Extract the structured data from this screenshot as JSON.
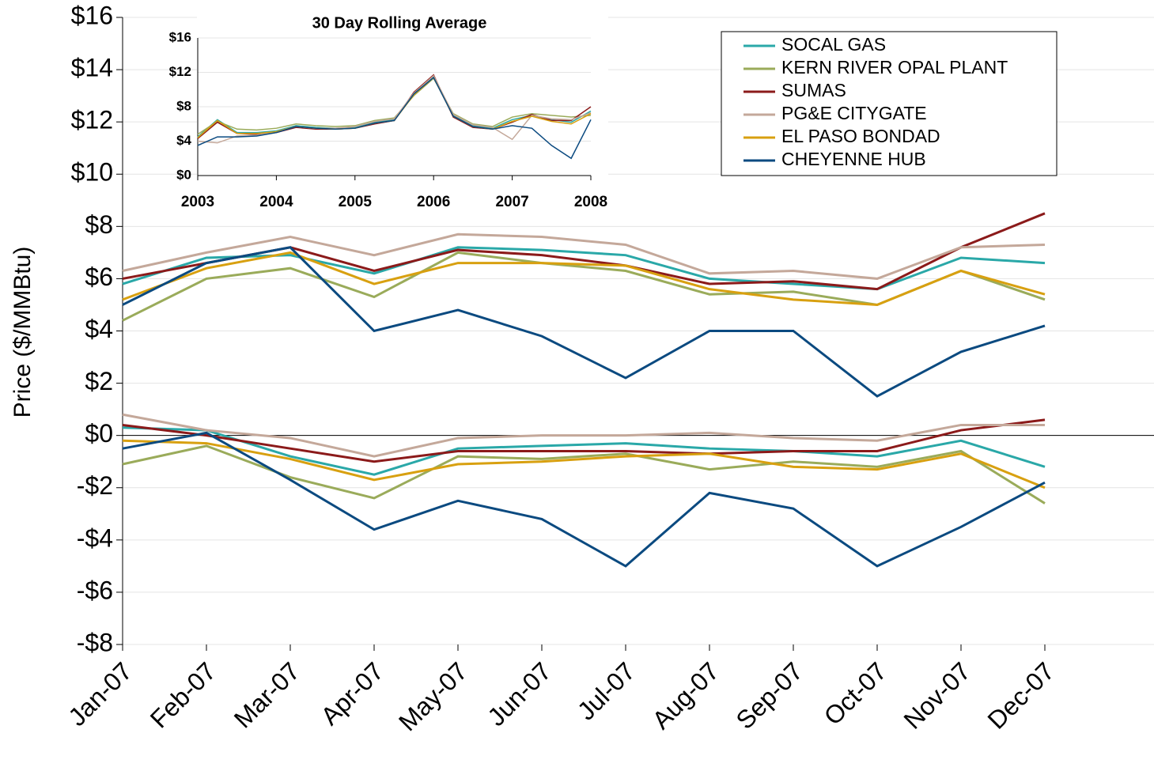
{
  "chart_data": [
    {
      "type": "line",
      "y_label": "Price ($/MMBtu)",
      "categories": [
        "Jan-07",
        "Feb-07",
        "Mar-07",
        "Apr-07",
        "May-07",
        "Jun-07",
        "Jul-07",
        "Aug-07",
        "Sep-07",
        "Oct-07",
        "Nov-07",
        "Dec-07"
      ],
      "ylim": [
        -8,
        16
      ],
      "yticks": [
        {
          "value": -8,
          "label": "-$8"
        },
        {
          "value": -6,
          "label": "-$6"
        },
        {
          "value": -4,
          "label": "-$4"
        },
        {
          "value": -2,
          "label": "-$2"
        },
        {
          "value": 0,
          "label": "$0"
        },
        {
          "value": 2,
          "label": "$2"
        },
        {
          "value": 4,
          "label": "$4"
        },
        {
          "value": 6,
          "label": "$6"
        },
        {
          "value": 8,
          "label": "$8"
        },
        {
          "value": 10,
          "label": "$10"
        },
        {
          "value": 12,
          "label": "$12"
        },
        {
          "value": 14,
          "label": "$14"
        },
        {
          "value": 16,
          "label": "$16"
        }
      ],
      "grid": true,
      "legend": "upper right",
      "series": [
        {
          "name": "SOCAL GAS",
          "color": "#2aa8a8",
          "values": [
            5.8,
            6.8,
            6.9,
            6.2,
            7.2,
            7.1,
            6.9,
            6.0,
            5.8,
            5.6,
            6.8,
            6.6
          ],
          "differential": [
            0.3,
            0.2,
            -0.8,
            -1.5,
            -0.5,
            -0.4,
            -0.3,
            -0.5,
            -0.6,
            -0.8,
            -0.2,
            -1.2
          ]
        },
        {
          "name": "KERN RIVER OPAL PLANT",
          "color": "#9aab5a",
          "values": [
            4.4,
            6.0,
            6.4,
            5.3,
            7.0,
            6.6,
            6.3,
            5.4,
            5.5,
            5.0,
            6.3,
            5.2
          ],
          "differential": [
            -1.1,
            -0.4,
            -1.6,
            -2.4,
            -0.8,
            -0.9,
            -0.7,
            -1.3,
            -1.0,
            -1.2,
            -0.6,
            -2.6
          ]
        },
        {
          "name": "SUMAS",
          "color": "#8b1a1a",
          "values": [
            6.0,
            6.6,
            7.2,
            6.3,
            7.1,
            6.9,
            6.5,
            5.8,
            5.9,
            5.6,
            7.2,
            8.5
          ],
          "differential": [
            0.4,
            0.0,
            -0.5,
            -1.0,
            -0.6,
            -0.6,
            -0.6,
            -0.7,
            -0.6,
            -0.6,
            0.2,
            0.6
          ]
        },
        {
          "name": "PG&E CITYGATE",
          "color": "#c4a89a",
          "values": [
            6.3,
            7.0,
            7.6,
            6.9,
            7.7,
            7.6,
            7.3,
            6.2,
            6.3,
            6.0,
            7.2,
            7.3
          ],
          "differential": [
            0.8,
            0.2,
            -0.1,
            -0.8,
            -0.1,
            0.0,
            0.0,
            0.1,
            -0.1,
            -0.2,
            0.4,
            0.4
          ]
        },
        {
          "name": "EL PASO BONDAD",
          "color": "#d8a010",
          "values": [
            5.2,
            6.4,
            7.0,
            5.8,
            6.6,
            6.6,
            6.5,
            5.6,
            5.2,
            5.0,
            6.3,
            5.4
          ],
          "differential": [
            -0.2,
            -0.3,
            -0.9,
            -1.7,
            -1.1,
            -1.0,
            -0.8,
            -0.7,
            -1.2,
            -1.3,
            -0.7,
            -2.0
          ]
        },
        {
          "name": "CHEYENNE HUB",
          "color": "#0b4a80",
          "values": [
            5.0,
            6.6,
            7.2,
            4.0,
            4.8,
            3.8,
            2.2,
            4.0,
            4.0,
            1.5,
            3.2,
            4.2
          ],
          "differential": [
            -0.5,
            0.1,
            -1.7,
            -3.6,
            -2.5,
            -3.2,
            -5.0,
            -2.2,
            -2.8,
            -5.0,
            -3.5,
            -1.8
          ]
        }
      ]
    },
    {
      "type": "line",
      "title": "30 Day Rolling Average",
      "x": [
        2003,
        2003.25,
        2003.5,
        2003.75,
        2004,
        2004.25,
        2004.5,
        2004.75,
        2005,
        2005.25,
        2005.5,
        2005.75,
        2006,
        2006.25,
        2006.5,
        2006.75,
        2007,
        2007.25,
        2007.5,
        2007.75,
        2008
      ],
      "xlim": [
        2003,
        2008
      ],
      "xticks": [
        2003,
        2004,
        2005,
        2006,
        2007,
        2008
      ],
      "ylim": [
        0,
        16
      ],
      "yticks": [
        {
          "value": 0,
          "label": "$0"
        },
        {
          "value": 4,
          "label": "$4"
        },
        {
          "value": 8,
          "label": "$8"
        },
        {
          "value": 12,
          "label": "$12"
        },
        {
          "value": 16,
          "label": "$16"
        }
      ],
      "grid": true,
      "series": [
        {
          "color": "#2aa8a8",
          "values": [
            4.5,
            6.5,
            5.0,
            5.0,
            5.2,
            5.8,
            5.6,
            5.5,
            5.6,
            6.2,
            6.5,
            9.5,
            11.5,
            7.0,
            5.8,
            5.5,
            6.5,
            7.0,
            6.5,
            6.2,
            7.5
          ]
        },
        {
          "color": "#9aab5a",
          "values": [
            4.8,
            6.3,
            5.4,
            5.3,
            5.5,
            6.0,
            5.8,
            5.7,
            5.8,
            6.4,
            6.7,
            9.3,
            11.3,
            7.2,
            6.0,
            5.7,
            6.8,
            7.2,
            7.0,
            6.8,
            7.0
          ]
        },
        {
          "color": "#8b1a1a",
          "values": [
            4.3,
            6.2,
            4.9,
            4.8,
            5.0,
            5.6,
            5.4,
            5.4,
            5.5,
            6.0,
            6.4,
            9.7,
            11.7,
            6.8,
            5.6,
            5.4,
            6.2,
            7.1,
            6.4,
            6.4,
            8.0
          ]
        },
        {
          "color": "#c4a89a",
          "values": [
            4.0,
            3.8,
            4.6,
            4.7,
            5.1,
            5.7,
            5.5,
            5.5,
            5.7,
            6.3,
            6.6,
            9.6,
            11.6,
            7.1,
            5.9,
            5.6,
            4.2,
            7.0,
            6.6,
            6.5,
            7.3
          ]
        },
        {
          "color": "#d8a010",
          "values": [
            4.4,
            6.4,
            4.9,
            4.9,
            5.1,
            5.7,
            5.5,
            5.4,
            5.5,
            6.1,
            6.4,
            9.4,
            11.4,
            6.9,
            5.7,
            5.4,
            6.3,
            6.9,
            6.3,
            6.0,
            7.2
          ]
        },
        {
          "color": "#0b4a80",
          "values": [
            3.5,
            4.5,
            4.5,
            4.6,
            5.0,
            5.7,
            5.5,
            5.4,
            5.5,
            6.1,
            6.4,
            9.5,
            11.4,
            6.9,
            5.7,
            5.4,
            5.8,
            5.5,
            3.5,
            2.0,
            6.5
          ]
        }
      ]
    }
  ]
}
